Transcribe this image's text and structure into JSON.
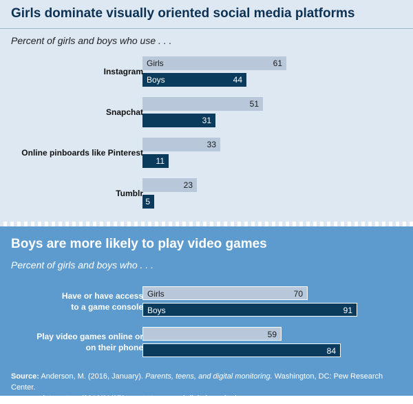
{
  "chart_data": [
    {
      "type": "bar",
      "orientation": "horizontal",
      "title": "Girls dominate visually oriented social media platforms",
      "subtitle": "Percent of girls and boys who use . . .",
      "categories": [
        "Instagram",
        "Snapchat",
        "Online pinboards like Pinterest",
        "Tumblr"
      ],
      "series": [
        {
          "name": "Girls",
          "values": [
            61,
            51,
            33,
            23
          ],
          "color": "#b8c7d9"
        },
        {
          "name": "Boys",
          "values": [
            44,
            31,
            11,
            5
          ],
          "color": "#0a3a5c"
        }
      ],
      "xlim": [
        0,
        100
      ]
    },
    {
      "type": "bar",
      "orientation": "horizontal",
      "title": "Boys are more likely to play video games",
      "subtitle": "Percent of girls and boys who . . .",
      "categories": [
        "Have or have access to a game console",
        "Play video games online or on their phone"
      ],
      "category_lines": [
        [
          "Have or have access",
          "to a game console"
        ],
        [
          "Play video games online or",
          "on their phone"
        ]
      ],
      "series": [
        {
          "name": "Girls",
          "values": [
            70,
            59
          ],
          "color": "#b8c7d9"
        },
        {
          "name": "Boys",
          "values": [
            91,
            84
          ],
          "color": "#0a3a5c"
        }
      ],
      "xlim": [
        0,
        100
      ]
    }
  ],
  "source": {
    "label": "Source:",
    "text1": " Anderson, M. (2016, January). ",
    "title": "Parents, teens, and digital monitoring.",
    "text2": " Washington, DC: Pew Research Center.",
    "url": "www.pewinternet.org/2016/01/07/parents-teens-and-digital-monitoring"
  },
  "colors": {
    "top_background": "#dde8f2",
    "bottom_background": "#5d9bcf",
    "title_color": "#0d3153"
  }
}
